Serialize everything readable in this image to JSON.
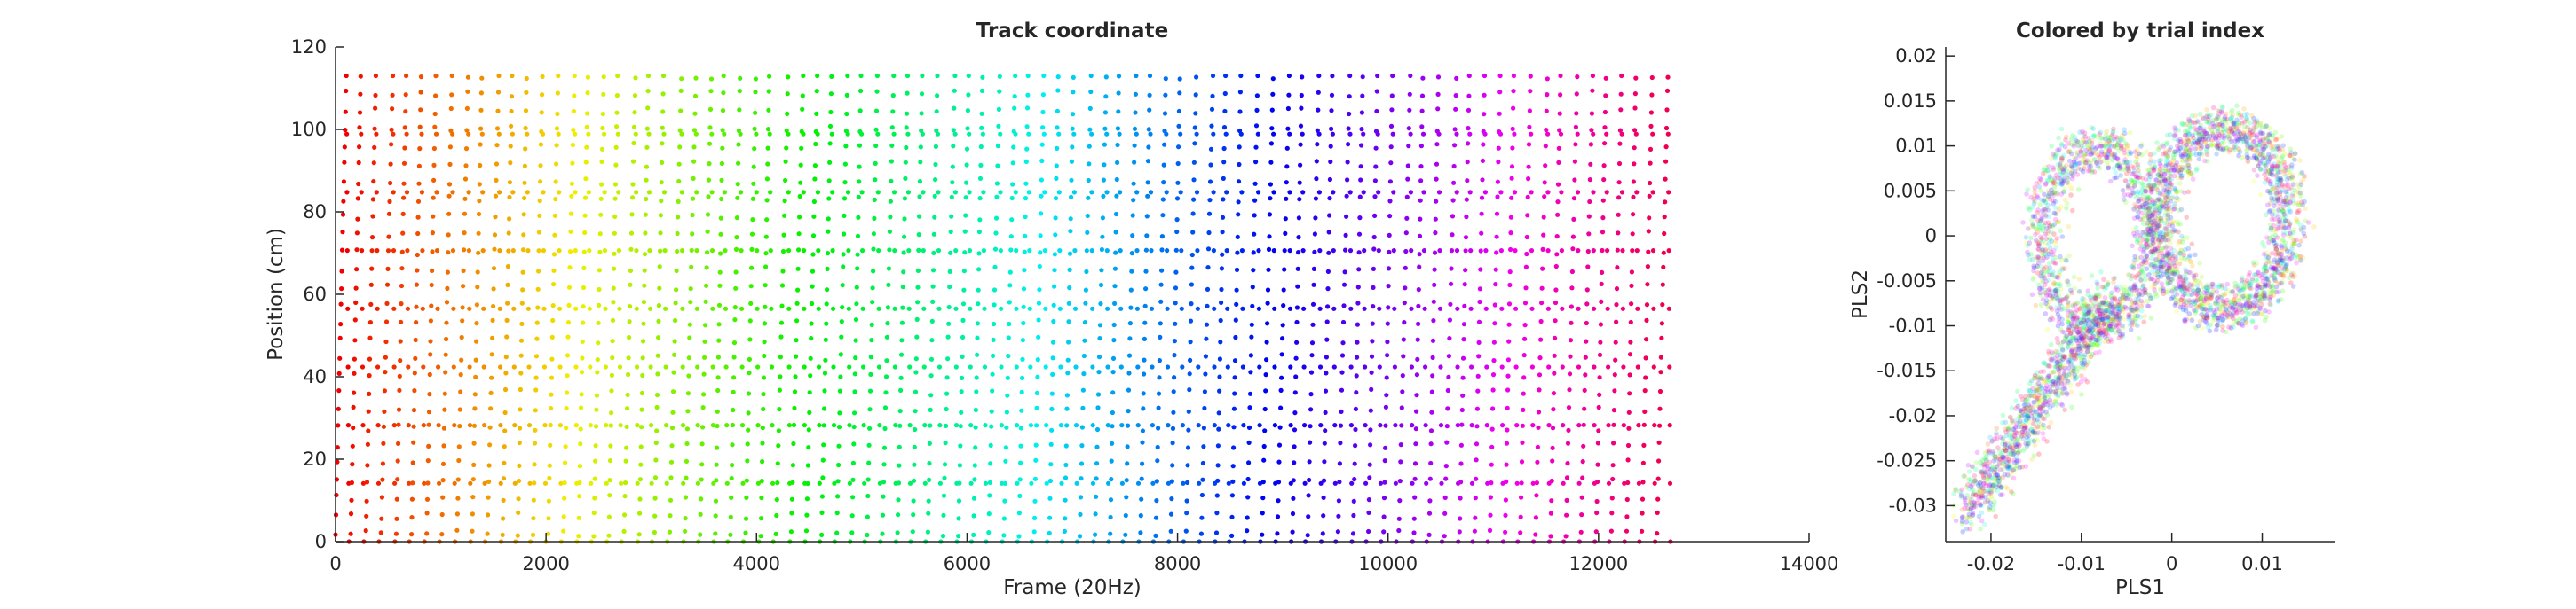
{
  "chart_data": [
    {
      "type": "scatter",
      "title": "Track coordinate",
      "xlabel": "Frame (20Hz)",
      "ylabel": "Position (cm)",
      "xlim": [
        0,
        14000
      ],
      "ylim": [
        0,
        120
      ],
      "xticks": [
        "0",
        "2000",
        "4000",
        "6000",
        "8000",
        "10000",
        "12000",
        "14000"
      ],
      "yticks": [
        "0",
        "20",
        "40",
        "60",
        "80",
        "100",
        "120"
      ],
      "grid": false,
      "color_mapping": "hue by trial index (red → orange → yellow → green → cyan → blue → violet → magenta → red)",
      "frame_range": [
        0,
        12700
      ],
      "n_laps": 88,
      "position_range": [
        0,
        113
      ]
    },
    {
      "type": "scatter",
      "title": "Colored by trial index",
      "xlabel": "PLS1",
      "ylabel": "PLS2",
      "xlim": [
        -0.025,
        0.018
      ],
      "ylim": [
        -0.034,
        0.021
      ],
      "xticks": [
        "-0.02",
        "-0.01",
        "0",
        "0.01"
      ],
      "yticks": [
        "-0.03",
        "-0.025",
        "-0.02",
        "-0.015",
        "-0.01",
        "-0.005",
        "0",
        "0.005",
        "0.01",
        "0.015",
        "0.02"
      ],
      "grid": false,
      "color_mapping": "hue by trial index, semi-transparent markers"
    }
  ]
}
